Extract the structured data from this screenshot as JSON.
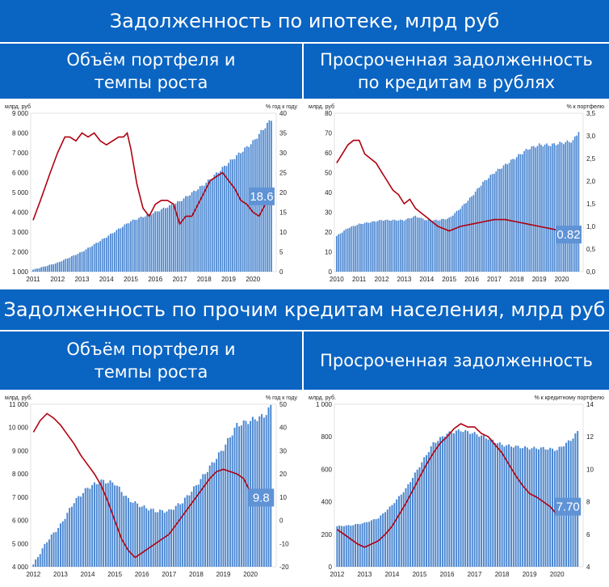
{
  "headers": {
    "mortgage": "Задолженность по ипотеке, млрд руб",
    "other": "Задолженность по прочим кредитам населения, млрд руб"
  },
  "subheaders": {
    "mortgage_volume": "Объём портфеля и темпы роста",
    "mortgage_overdue": "Просроченная задолженность по кредитам в рублях",
    "other_volume": "Объём портфеля и темпы роста",
    "other_overdue": "Просроченная задолженность"
  },
  "chart_data": [
    {
      "id": "mortgage_volume",
      "type": "bar",
      "left_unit": "млрд. руб",
      "right_unit": "% год к году",
      "ylim": [
        1000,
        9000
      ],
      "y_ticks": [
        "1 000",
        "2 000",
        "3 000",
        "4 000",
        "5 000",
        "6 000",
        "7 000",
        "8 000",
        "9 000"
      ],
      "y2lim": [
        0,
        40
      ],
      "y2_ticks": [
        "0",
        "5",
        "10",
        "15",
        "20",
        "25",
        "30",
        "35",
        "40"
      ],
      "x_ticks": [
        "2011",
        "2012",
        "2013",
        "2014",
        "2015",
        "2016",
        "2017",
        "2018",
        "2019",
        "2020"
      ],
      "xlim": [
        2010.9,
        2020.95
      ],
      "bars": {
        "x": [
          2011,
          2012,
          2013,
          2014,
          2015,
          2016,
          2017,
          2018,
          2019,
          2020,
          2020.75
        ],
        "y": [
          1100,
          1450,
          2000,
          2750,
          3550,
          4000,
          4550,
          5400,
          6500,
          7550,
          8700
        ]
      },
      "line": {
        "x": [
          2011,
          2011.3,
          2011.7,
          2012,
          2012.3,
          2012.5,
          2012.75,
          2013,
          2013.25,
          2013.5,
          2013.75,
          2014,
          2014.25,
          2014.5,
          2014.7,
          2014.85,
          2015,
          2015.25,
          2015.5,
          2015.75,
          2016,
          2016.25,
          2016.5,
          2016.75,
          2017,
          2017.25,
          2017.5,
          2017.75,
          2018,
          2018.25,
          2018.5,
          2018.75,
          2019,
          2019.25,
          2019.5,
          2019.75,
          2020,
          2020.25,
          2020.5,
          2020.75
        ],
        "y": [
          13,
          18,
          25,
          30,
          34,
          34,
          33,
          35,
          34,
          35,
          33,
          32,
          33,
          34,
          34,
          35,
          31,
          22,
          16,
          14,
          17,
          18,
          18,
          17,
          12,
          14,
          14,
          17,
          20,
          23,
          24,
          25,
          23,
          21,
          18,
          17,
          15,
          14,
          17,
          19
        ]
      },
      "last_value_label": "18.6"
    },
    {
      "id": "mortgage_overdue",
      "type": "bar",
      "left_unit": "млрд. руб",
      "right_unit": "% к портфелю",
      "ylim": [
        0,
        80
      ],
      "y_ticks": [
        "0",
        "10",
        "20",
        "30",
        "40",
        "50",
        "60",
        "70",
        "80"
      ],
      "y2lim": [
        0,
        3.5
      ],
      "y2_ticks": [
        "0,0",
        "0,5",
        "1,0",
        "1,5",
        "2,0",
        "2,5",
        "3,0",
        "3,5"
      ],
      "x_ticks": [
        "2010",
        "2011",
        "2012",
        "2013",
        "2014",
        "2015",
        "2016",
        "2017",
        "2018",
        "2019",
        "2020"
      ],
      "xlim": [
        2009.9,
        2020.95
      ],
      "bars": {
        "x": [
          2010,
          2010.5,
          2011,
          2011.5,
          2012,
          2012.5,
          2013,
          2013.5,
          2014,
          2014.5,
          2015,
          2015.5,
          2016,
          2016.5,
          2017,
          2017.5,
          2018,
          2018.5,
          2019,
          2019.5,
          2020,
          2020.5,
          2020.75
        ],
        "y": [
          18,
          22,
          24,
          25,
          26,
          26,
          26,
          28,
          26,
          26,
          27,
          32,
          38,
          45,
          50,
          54,
          58,
          62,
          64,
          64,
          65,
          66,
          71
        ]
      },
      "line": {
        "x": [
          2010,
          2010.25,
          2010.5,
          2010.75,
          2011,
          2011.25,
          2011.5,
          2011.75,
          2012,
          2012.25,
          2012.5,
          2012.75,
          2013,
          2013.25,
          2013.5,
          2013.75,
          2014,
          2014.25,
          2014.5,
          2014.75,
          2015,
          2015.5,
          2016,
          2016.5,
          2017,
          2017.5,
          2018,
          2018.5,
          2019,
          2019.5,
          2020,
          2020.5,
          2020.75
        ],
        "y": [
          2.4,
          2.6,
          2.8,
          2.9,
          2.9,
          2.6,
          2.5,
          2.4,
          2.2,
          2.0,
          1.8,
          1.7,
          1.5,
          1.6,
          1.4,
          1.3,
          1.2,
          1.1,
          1.0,
          0.95,
          0.9,
          1.0,
          1.05,
          1.1,
          1.15,
          1.15,
          1.1,
          1.05,
          1.0,
          0.95,
          0.9,
          0.87,
          0.82
        ]
      },
      "last_value_label": "0.82"
    },
    {
      "id": "other_volume",
      "type": "bar",
      "left_unit": "млрд. руб.",
      "right_unit": "% год к году",
      "ylim": [
        4000,
        11000
      ],
      "y_ticks": [
        "4 000",
        "5 000",
        "6 000",
        "7 000",
        "8 000",
        "9 000",
        "10 000",
        "11 000"
      ],
      "y2lim": [
        -20,
        50
      ],
      "y2_ticks": [
        "-20",
        "-10",
        "0",
        "10",
        "20",
        "30",
        "40",
        "50"
      ],
      "x_ticks": [
        "2012",
        "2013",
        "2014",
        "2015",
        "2016",
        "2017",
        "2018",
        "2019",
        "2020"
      ],
      "xlim": [
        2011.9,
        2020.95
      ],
      "bars": {
        "x": [
          2012,
          2012.5,
          2013,
          2013.5,
          2014,
          2014.5,
          2015,
          2015.5,
          2016,
          2016.5,
          2017,
          2017.5,
          2018,
          2018.5,
          2019,
          2019.5,
          2020,
          2020.5,
          2020.75
        ],
        "y": [
          4100,
          5100,
          5800,
          6800,
          7400,
          7700,
          7600,
          6900,
          6600,
          6400,
          6400,
          6800,
          7500,
          8300,
          9100,
          10100,
          10300,
          10500,
          10900
        ]
      },
      "line": {
        "x": [
          2012,
          2012.25,
          2012.5,
          2012.75,
          2013,
          2013.25,
          2013.5,
          2013.75,
          2014,
          2014.25,
          2014.5,
          2014.75,
          2015,
          2015.25,
          2015.5,
          2015.75,
          2016,
          2016.25,
          2016.5,
          2016.75,
          2017,
          2017.25,
          2017.5,
          2017.75,
          2018,
          2018.25,
          2018.5,
          2018.75,
          2019,
          2019.25,
          2019.5,
          2019.75,
          2020,
          2020.25,
          2020.5,
          2020.75
        ],
        "y": [
          38,
          43,
          46,
          44,
          41,
          37,
          33,
          28,
          24,
          20,
          15,
          8,
          0,
          -8,
          -13,
          -16,
          -14,
          -12,
          -10,
          -8,
          -6,
          -2,
          2,
          6,
          10,
          14,
          18,
          21,
          22,
          21,
          20,
          18,
          12,
          10,
          9.8,
          9.8
        ]
      },
      "last_value_label": "9.8"
    },
    {
      "id": "other_overdue",
      "type": "bar",
      "left_unit": "млрд. руб.",
      "right_unit": "% к кредитному портфелю",
      "ylim": [
        0,
        1000
      ],
      "y_ticks": [
        "0",
        "200",
        "400",
        "600",
        "800",
        "1 000"
      ],
      "y2lim": [
        4,
        14
      ],
      "y2_ticks": [
        "4",
        "6",
        "8",
        "10",
        "12",
        "14"
      ],
      "x_ticks": [
        "2012",
        "2013",
        "2014",
        "2015",
        "2016",
        "2017",
        "2018",
        "2019",
        "2020"
      ],
      "xlim": [
        2011.9,
        2020.95
      ],
      "bars": {
        "x": [
          2012,
          2012.5,
          2013,
          2013.5,
          2014,
          2014.5,
          2015,
          2015.5,
          2016,
          2016.5,
          2017,
          2017.5,
          2018,
          2018.5,
          2019,
          2019.5,
          2020,
          2020.5,
          2020.75
        ],
        "y": [
          250,
          255,
          270,
          300,
          380,
          480,
          620,
          760,
          820,
          840,
          820,
          790,
          750,
          740,
          730,
          730,
          720,
          780,
          830
        ]
      },
      "line": {
        "x": [
          2012,
          2012.25,
          2012.5,
          2012.75,
          2013,
          2013.25,
          2013.5,
          2013.75,
          2014,
          2014.25,
          2014.5,
          2014.75,
          2015,
          2015.25,
          2015.5,
          2015.75,
          2016,
          2016.25,
          2016.5,
          2016.75,
          2017,
          2017.25,
          2017.5,
          2017.75,
          2018,
          2018.25,
          2018.5,
          2018.75,
          2019,
          2019.25,
          2019.5,
          2019.75,
          2020,
          2020.25,
          2020.5,
          2020.75
        ],
        "y": [
          6.3,
          6.0,
          5.7,
          5.4,
          5.2,
          5.4,
          5.6,
          6.0,
          6.5,
          7.2,
          7.9,
          8.7,
          9.5,
          10.3,
          11.0,
          11.6,
          12.0,
          12.5,
          12.8,
          12.6,
          12.6,
          12.2,
          12.0,
          11.5,
          11.0,
          10.3,
          9.6,
          9.0,
          8.5,
          8.3,
          8.0,
          7.7,
          7.2,
          7.3,
          7.6,
          7.7
        ]
      },
      "last_value_label": "7.70"
    }
  ],
  "colors": {
    "header_bg": "#0a64c2",
    "bar": "#4a86d0",
    "line": "#b00010",
    "label_bg": "#5f93d6"
  }
}
